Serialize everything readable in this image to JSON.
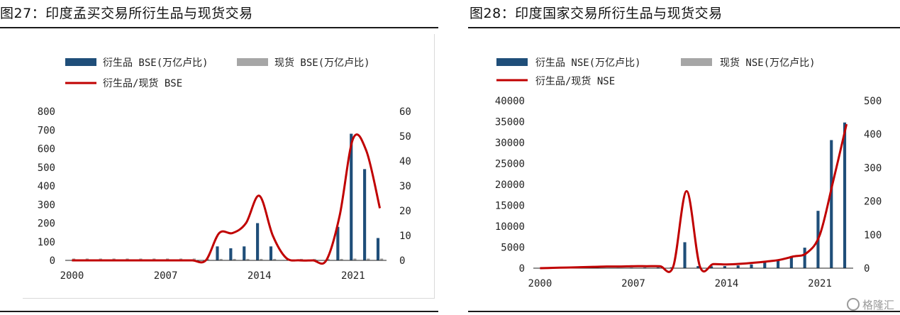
{
  "charts": [
    {
      "title": "图27：印度孟买交易所衍生品与现货交易",
      "legend": {
        "bar1": "衍生品 BSE(万亿卢比)",
        "bar2": "现货 BSE(万亿卢比)",
        "line": "衍生品/现货 BSE"
      }
    },
    {
      "title": "图28：印度国家交易所衍生品与现货交易",
      "legend": {
        "bar1": "衍生品 NSE(万亿卢比)",
        "bar2": "现货 NSE(万亿卢比)",
        "line": "衍生品/现货 NSE"
      }
    }
  ],
  "watermark": "格隆汇",
  "colors": {
    "bar1": "#1f4e79",
    "bar2": "#a6a6a6",
    "line": "#c00000"
  },
  "chart_data": [
    {
      "type": "bar",
      "title": "图27：印度孟买交易所衍生品与现货交易",
      "years": [
        2000,
        2001,
        2002,
        2003,
        2004,
        2005,
        2006,
        2007,
        2008,
        2009,
        2010,
        2011,
        2012,
        2013,
        2014,
        2015,
        2016,
        2017,
        2018,
        2019,
        2020,
        2021,
        2022,
        2023
      ],
      "x_tick_labels": [
        "2000",
        "2007",
        "2014",
        "2021"
      ],
      "series": [
        {
          "name": "衍生品 BSE(万亿卢比)",
          "axis": "left",
          "values": [
            1,
            1,
            1,
            1,
            2,
            2,
            2,
            2,
            2,
            2,
            2,
            75,
            65,
            75,
            200,
            75,
            2,
            1,
            1,
            1,
            180,
            680,
            490,
            120
          ]
        },
        {
          "name": "现货 BSE(万亿卢比)",
          "axis": "left",
          "values": [
            10,
            10,
            10,
            10,
            10,
            10,
            10,
            10,
            10,
            10,
            8,
            8,
            8,
            8,
            8,
            8,
            8,
            8,
            8,
            8,
            8,
            10,
            10,
            10
          ]
        },
        {
          "name": "衍生品/现货 BSE",
          "axis": "right",
          "type": "line",
          "values": [
            0,
            0,
            0,
            0,
            0,
            0,
            0,
            0,
            0,
            0,
            0,
            11,
            11,
            15,
            26,
            10,
            1,
            0,
            0,
            0,
            18,
            49,
            44,
            21
          ]
        }
      ],
      "y_left": {
        "min": 0,
        "max": 800,
        "ticks": [
          0,
          100,
          200,
          300,
          400,
          500,
          600,
          700,
          800
        ]
      },
      "y_right": {
        "min": 0,
        "max": 60,
        "ticks": [
          0,
          10,
          20,
          30,
          40,
          50,
          60
        ]
      }
    },
    {
      "type": "bar",
      "title": "图28：印度国家交易所衍生品与现货交易",
      "years": [
        2000,
        2001,
        2002,
        2003,
        2004,
        2005,
        2006,
        2007,
        2008,
        2009,
        2010,
        2011,
        2012,
        2013,
        2014,
        2015,
        2016,
        2017,
        2018,
        2019,
        2020,
        2021,
        2022,
        2023
      ],
      "x_tick_labels": [
        "2000",
        "2007",
        "2014",
        "2021"
      ],
      "series": [
        {
          "name": "衍生品 NSE(万亿卢比)",
          "axis": "left",
          "values": [
            0,
            10,
            20,
            30,
            50,
            70,
            100,
            130,
            150,
            180,
            200,
            6200,
            500,
            450,
            500,
            650,
            900,
            1400,
            1900,
            2900,
            4900,
            13700,
            30600,
            34800
          ]
        },
        {
          "name": "现货 NSE(万亿卢比)",
          "axis": "left",
          "values": [
            60,
            60,
            60,
            60,
            60,
            60,
            60,
            60,
            60,
            60,
            60,
            60,
            60,
            60,
            60,
            60,
            60,
            60,
            60,
            60,
            60,
            60,
            60,
            60
          ]
        },
        {
          "name": "衍生品/现货 NSE",
          "axis": "right",
          "type": "line",
          "values": [
            0,
            1,
            2,
            3,
            4,
            5,
            5,
            6,
            6,
            6,
            5,
            230,
            5,
            12,
            11,
            13,
            16,
            20,
            25,
            35,
            45,
            100,
            260,
            430
          ]
        }
      ],
      "y_left": {
        "min": 0,
        "max": 40000,
        "ticks": [
          0,
          5000,
          10000,
          15000,
          20000,
          25000,
          30000,
          35000,
          40000
        ]
      },
      "y_right": {
        "min": 0,
        "max": 500,
        "ticks": [
          0,
          100,
          200,
          300,
          400,
          500
        ]
      }
    }
  ]
}
